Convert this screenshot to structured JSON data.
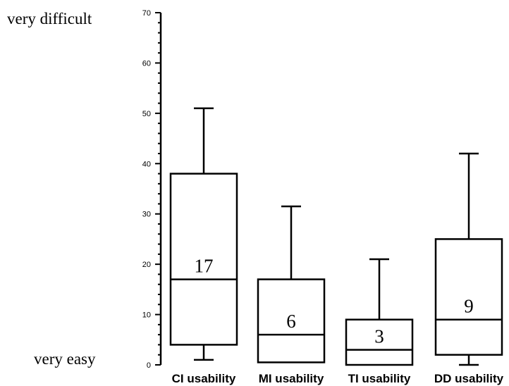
{
  "chart_data": {
    "type": "boxplot",
    "title": "",
    "xlabel": "",
    "ylabel": "",
    "ylim": [
      0,
      70
    ],
    "y_major_ticks": [
      0,
      10,
      20,
      30,
      40,
      50,
      60,
      70
    ],
    "y_minor_step": 2,
    "y_side_labels": {
      "top": "very difficult",
      "bottom": "very easy"
    },
    "categories": [
      "CI usability",
      "MI usability",
      "TI usability",
      "DD usability"
    ],
    "boxes": [
      {
        "category": "CI usability",
        "whisker_low": 1,
        "q1": 4,
        "median": 17,
        "q3": 38,
        "whisker_high": 51,
        "median_label": "17"
      },
      {
        "category": "MI usability",
        "whisker_low": 0.5,
        "q1": 0.5,
        "median": 6,
        "q3": 17,
        "whisker_high": 31.5,
        "median_label": "6"
      },
      {
        "category": "TI usability",
        "whisker_low": 0,
        "q1": 0,
        "median": 3,
        "q3": 9,
        "whisker_high": 21,
        "median_label": "3"
      },
      {
        "category": "DD usability",
        "whisker_low": 0,
        "q1": 2,
        "median": 9,
        "q3": 25,
        "whisker_high": 42,
        "median_label": "9"
      }
    ],
    "grid": false,
    "legend": "none",
    "color": "#000000"
  }
}
